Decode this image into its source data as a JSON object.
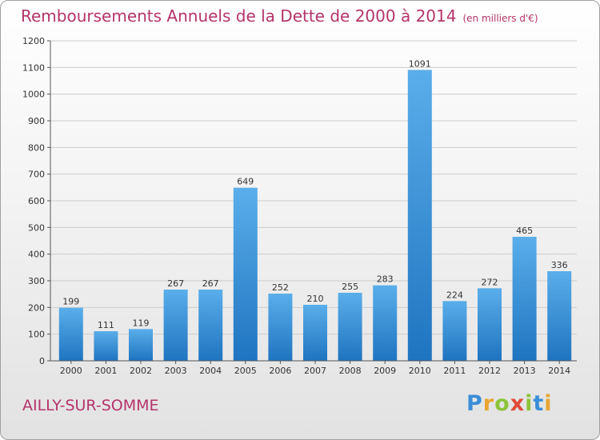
{
  "title": "Remboursements Annuels de la Dette de 2000 à 2014",
  "subtitle": "(en milliers d'€)",
  "commune": "AILLY-SUR-SOMME",
  "logo": "Proxiti",
  "colors": {
    "bar_light": "#5aaeea",
    "bar_dark": "#1f74c0",
    "title": "#b5346a",
    "grid": "#cccccc",
    "axis": "#555555"
  },
  "chart_data": {
    "type": "bar",
    "categories": [
      "2000",
      "2001",
      "2002",
      "2003",
      "2004",
      "2005",
      "2006",
      "2007",
      "2008",
      "2009",
      "2010",
      "2011",
      "2012",
      "2013",
      "2014"
    ],
    "values": [
      199,
      111,
      119,
      267,
      267,
      649,
      252,
      210,
      255,
      283,
      1091,
      224,
      272,
      465,
      336
    ],
    "data_labels": [
      "199",
      "111",
      "119",
      "267",
      "267",
      "649",
      "252",
      "210",
      "255",
      "283",
      "1091",
      "224",
      "272",
      "465",
      "336"
    ],
    "title": "Remboursements Annuels de la Dette de 2000 à 2014",
    "subtitle": "(en milliers d'€)",
    "xlabel": "",
    "ylabel": "",
    "ylim": [
      0,
      1200
    ],
    "yticks": [
      0,
      100,
      200,
      300,
      400,
      500,
      600,
      700,
      800,
      900,
      1000,
      1100,
      1200
    ],
    "grid": true
  }
}
